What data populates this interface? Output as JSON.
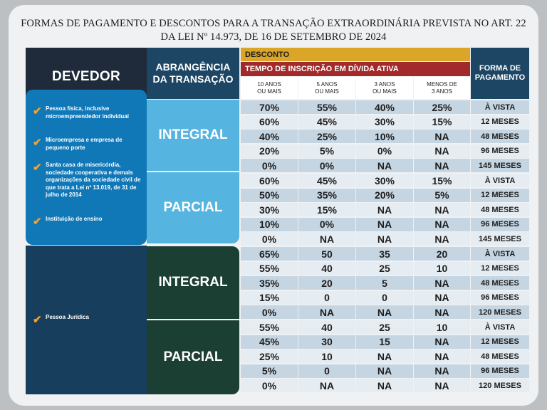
{
  "title_line1": "FORMAS DE PAGAMENTO E DESCONTOS PARA A TRANSAÇÃO EXTRAORDINÁRIA PREVISTA NO ART. 22",
  "title_line2": "DA LEI Nº 14.973, DE 16 DE SETEMBRO DE 2024",
  "header": {
    "devedor": "DEVEDOR",
    "abrangencia_l1": "ABRANGÊNCIA",
    "abrangencia_l2": "DA TRANSAÇÃO",
    "desconto": "DESCONTO",
    "tempo": "TEMPO DE INSCRIÇÃO EM DÍVIDA ATIVA",
    "forma_l1": "FORMA DE",
    "forma_l2": "PAGAMENTO",
    "cols": [
      {
        "l1": "10 ANOS",
        "l2": "OU MAIS"
      },
      {
        "l1": "5 ANOS",
        "l2": "OU MAIS"
      },
      {
        "l1": "3 ANOS",
        "l2": "OU MAIS"
      },
      {
        "l1": "MENOS DE",
        "l2": "3 ANOS"
      }
    ]
  },
  "pf_items": [
    "Pessoa física, inclusive microempreendedor individual",
    "Microempresa e empresa de pequeno porte",
    "Santa casa de misericórdia, sociedade cooperativa e demais organizações da sociedade civil de que trata a Lei nº 13.019, de 31 de julho de 2014",
    "Instituição de ensino"
  ],
  "pj_item": "Pessoa Jurídica",
  "labels": {
    "integral": "INTEGRAL",
    "parcial": "PARCIAL"
  },
  "rows": [
    {
      "v": [
        "70%",
        "55%",
        "40%",
        "25%"
      ],
      "f": "À VISTA"
    },
    {
      "v": [
        "60%",
        "45%",
        "30%",
        "15%"
      ],
      "f": "12 MESES"
    },
    {
      "v": [
        "40%",
        "25%",
        "10%",
        "NA"
      ],
      "f": "48 MESES"
    },
    {
      "v": [
        "20%",
        "5%",
        "0%",
        "NA"
      ],
      "f": "96 MESES"
    },
    {
      "v": [
        "0%",
        "0%",
        "NA",
        "NA"
      ],
      "f": "145 MESES"
    },
    {
      "v": [
        "60%",
        "45%",
        "30%",
        "15%"
      ],
      "f": "À VISTA"
    },
    {
      "v": [
        "50%",
        "35%",
        "20%",
        "5%"
      ],
      "f": "12 MESES"
    },
    {
      "v": [
        "30%",
        "15%",
        "NA",
        "NA"
      ],
      "f": "48 MESES"
    },
    {
      "v": [
        "10%",
        "0%",
        "NA",
        "NA"
      ],
      "f": "96 MESES"
    },
    {
      "v": [
        "0%",
        "NA",
        "NA",
        "NA"
      ],
      "f": "145 MESES"
    },
    {
      "v": [
        "65%",
        "50",
        "35",
        "20"
      ],
      "f": "À VISTA"
    },
    {
      "v": [
        "55%",
        "40",
        "25",
        "10"
      ],
      "f": "12 MESES"
    },
    {
      "v": [
        "35%",
        "20",
        "5",
        "NA"
      ],
      "f": "48 MESES"
    },
    {
      "v": [
        "15%",
        "0",
        "0",
        "NA"
      ],
      "f": "96 MESES"
    },
    {
      "v": [
        "0%",
        "NA",
        "NA",
        "NA"
      ],
      "f": "120 MESES"
    },
    {
      "v": [
        "55%",
        "40",
        "25",
        "10"
      ],
      "f": "À VISTA"
    },
    {
      "v": [
        "45%",
        "30",
        "15",
        "NA"
      ],
      "f": "12 MESES"
    },
    {
      "v": [
        "25%",
        "10",
        "NA",
        "NA"
      ],
      "f": "48 MESES"
    },
    {
      "v": [
        "5%",
        "0",
        "NA",
        "NA"
      ],
      "f": "96 MESES"
    },
    {
      "v": [
        "0%",
        "NA",
        "NA",
        "NA"
      ],
      "f": "120 MESES"
    }
  ]
}
